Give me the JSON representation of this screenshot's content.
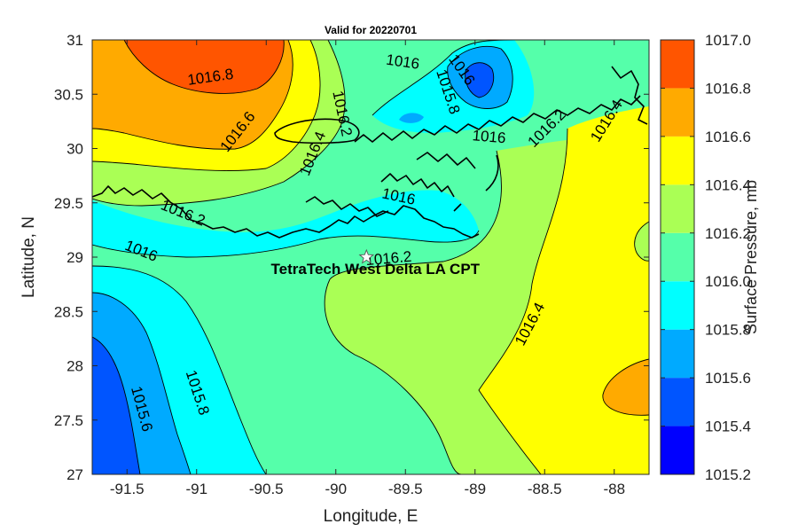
{
  "chart_data": {
    "type": "filled-contour-map",
    "title": "Valid for 20220701",
    "xlabel": "Longitude, E",
    "ylabel": "Latitude, N",
    "xlim": [
      -91.75,
      -87.75
    ],
    "ylim": [
      27,
      31
    ],
    "xticks": [
      -91.5,
      -91,
      -90.5,
      -90,
      -89.5,
      -89,
      -88.5,
      -88
    ],
    "xtick_labels": [
      "-91.5",
      "-91",
      "-90.5",
      "-90",
      "-89.5",
      "-89",
      "-88.5",
      "-88"
    ],
    "yticks": [
      27,
      27.5,
      28,
      28.5,
      29,
      29.5,
      30,
      30.5,
      31
    ],
    "ytick_labels": [
      "27",
      "27.5",
      "28",
      "28.5",
      "29",
      "29.5",
      "30",
      "30.5",
      "31"
    ],
    "colorbar": {
      "label": "Surface Pressure, mb",
      "range": [
        1015.2,
        1017.0
      ],
      "levels": [
        1015.2,
        1015.4,
        1015.6,
        1015.8,
        1016.0,
        1016.2,
        1016.4,
        1016.6,
        1016.8,
        1017.0
      ],
      "tick_labels": [
        "1015.2",
        "1015.4",
        "1015.6",
        "1015.8",
        "1016.0",
        "1016.2",
        "1016.4",
        "1016.6",
        "1016.8",
        "1017.0"
      ],
      "colors": [
        "#0000ff",
        "#0055ff",
        "#00aaff",
        "#00ffff",
        "#55ffaa",
        "#aaff55",
        "#ffff00",
        "#ffaa00",
        "#ff5500"
      ]
    },
    "contour_labels": [
      {
        "text": "1016.8",
        "x": -90.9,
        "y": 30.65,
        "angle": -8
      },
      {
        "text": "1016.6",
        "x": -90.7,
        "y": 30.15,
        "angle": -52
      },
      {
        "text": "1016.4",
        "x": -90.16,
        "y": 29.95,
        "angle": -68
      },
      {
        "text": "1016.2",
        "x": -89.96,
        "y": 30.32,
        "angle": 78
      },
      {
        "text": "1016",
        "x": -89.52,
        "y": 30.79,
        "angle": 8
      },
      {
        "text": "1015.8",
        "x": -89.2,
        "y": 30.52,
        "angle": 72
      },
      {
        "text": "1016",
        "x": -89.1,
        "y": 30.72,
        "angle": 55
      },
      {
        "text": "1016",
        "x": -88.9,
        "y": 30.1,
        "angle": 5
      },
      {
        "text": "1016.2",
        "x": -88.48,
        "y": 30.18,
        "angle": -45
      },
      {
        "text": "1016.4",
        "x": -88.05,
        "y": 30.25,
        "angle": -58
      },
      {
        "text": "1016",
        "x": -89.55,
        "y": 29.55,
        "angle": 12
      },
      {
        "text": "1016.2",
        "x": -91.1,
        "y": 29.4,
        "angle": 22
      },
      {
        "text": "1016",
        "x": -91.4,
        "y": 29.05,
        "angle": 22
      },
      {
        "text": "1016.2",
        "x": -89.62,
        "y": 28.98,
        "angle": -5
      },
      {
        "text": "1016.4",
        "x": -88.6,
        "y": 28.38,
        "angle": -62
      },
      {
        "text": "1015.8",
        "x": -91.0,
        "y": 27.75,
        "angle": 72
      },
      {
        "text": "1015.6",
        "x": -91.4,
        "y": 27.6,
        "angle": 75
      }
    ],
    "site": {
      "name": "TetraTech West Delta LA CPT",
      "x": -89.78,
      "y": 29.0,
      "marker": "pentagram"
    }
  }
}
